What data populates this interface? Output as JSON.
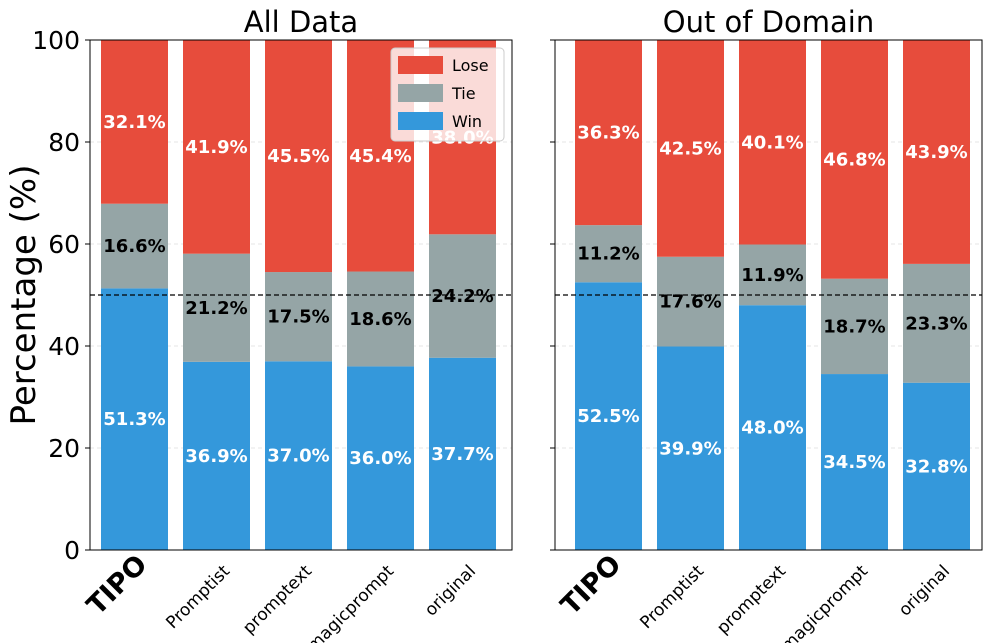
{
  "colors": {
    "win": "#3498db",
    "tie": "#95a5a6",
    "lose": "#e74c3c",
    "tie_label": "#000000",
    "value_label": "#ffffff"
  },
  "legend": {
    "lose": "Lose",
    "tie": "Tie",
    "win": "Win",
    "placement": "top-right"
  },
  "chart_data": [
    {
      "type": "bar",
      "stacked": true,
      "title": "All Data",
      "ylabel": "Percentage (%)",
      "ylim": [
        0,
        100
      ],
      "yticks": [
        "0",
        "20",
        "40",
        "60",
        "80",
        "100"
      ],
      "reference_line": 50,
      "categories": [
        "TIPO",
        "Promptist",
        "promptext",
        "magicprompt",
        "original"
      ],
      "series": [
        {
          "name": "Win",
          "values": [
            51.3,
            36.9,
            37.0,
            36.0,
            37.7
          ],
          "labels": [
            "51.3%",
            "36.9%",
            "37.0%",
            "36.0%",
            "37.7%"
          ]
        },
        {
          "name": "Tie",
          "values": [
            16.6,
            21.2,
            17.5,
            18.6,
            24.2
          ],
          "labels": [
            "16.6%",
            "21.2%",
            "17.5%",
            "18.6%",
            "24.2%"
          ]
        },
        {
          "name": "Lose",
          "values": [
            32.1,
            41.9,
            45.5,
            45.4,
            38.0
          ],
          "labels": [
            "32.1%",
            "41.9%",
            "45.5%",
            "45.4%",
            "38.0%"
          ]
        }
      ]
    },
    {
      "type": "bar",
      "stacked": true,
      "title": "Out of Domain",
      "ylabel": "",
      "ylim": [
        0,
        100
      ],
      "yticks": [],
      "reference_line": 50,
      "categories": [
        "TIPO",
        "Promptist",
        "promptext",
        "magicprompt",
        "original"
      ],
      "series": [
        {
          "name": "Win",
          "values": [
            52.5,
            39.9,
            48.0,
            34.5,
            32.8
          ],
          "labels": [
            "52.5%",
            "39.9%",
            "48.0%",
            "34.5%",
            "32.8%"
          ]
        },
        {
          "name": "Tie",
          "values": [
            11.2,
            17.6,
            11.9,
            18.7,
            23.3
          ],
          "labels": [
            "11.2%",
            "17.6%",
            "11.9%",
            "18.7%",
            "23.3%"
          ]
        },
        {
          "name": "Lose",
          "values": [
            36.3,
            42.5,
            40.1,
            46.8,
            43.9
          ],
          "labels": [
            "36.3%",
            "42.5%",
            "40.1%",
            "46.8%",
            "43.9%"
          ]
        }
      ]
    }
  ]
}
